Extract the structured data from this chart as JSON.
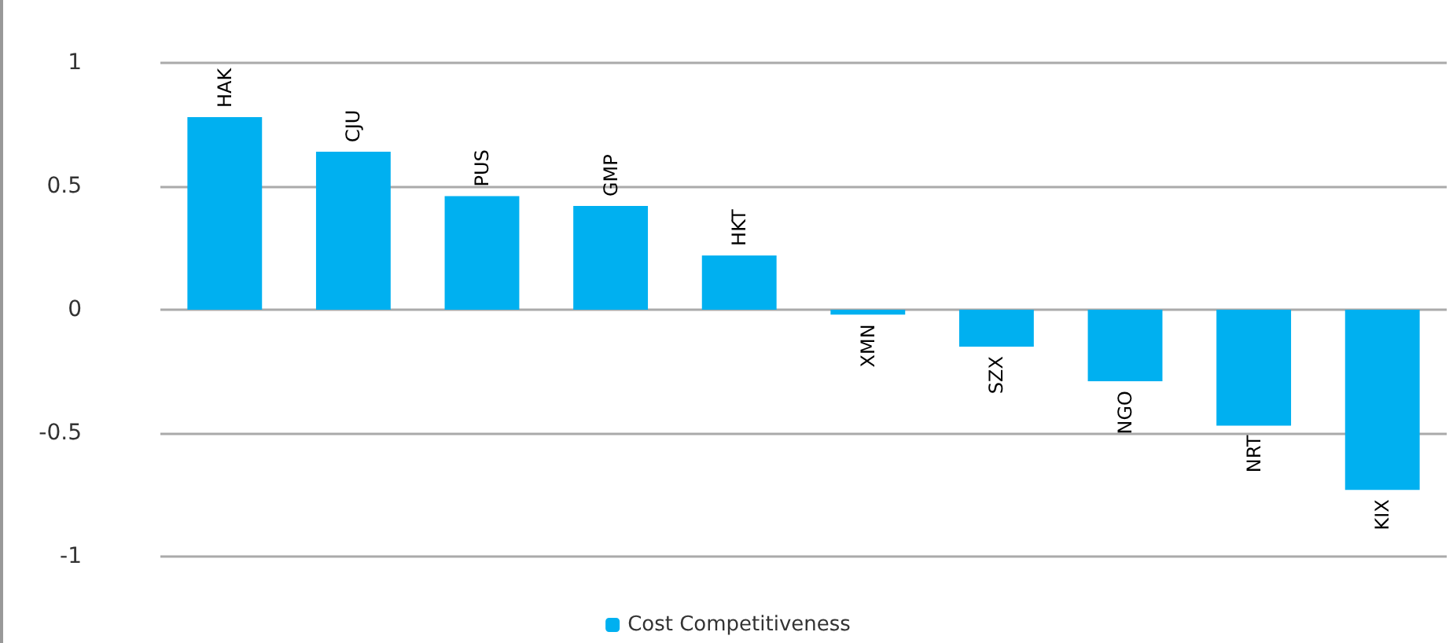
{
  "chart_data": {
    "type": "bar",
    "categories": [
      "HAK",
      "CJU",
      "PUS",
      "GMP",
      "HKT",
      "XMN",
      "SZX",
      "NGO",
      "NRT",
      "KIX"
    ],
    "series": [
      {
        "name": "Cost Competitiveness",
        "color": "#00b0f0",
        "values": [
          0.78,
          0.64,
          0.46,
          0.42,
          0.22,
          -0.02,
          -0.15,
          -0.29,
          -0.47,
          -0.73
        ]
      }
    ],
    "ylim": [
      -1,
      1
    ],
    "yticks": [
      -1,
      -0.5,
      0,
      0.5,
      1
    ],
    "grid": "y",
    "legend": "bottom"
  }
}
